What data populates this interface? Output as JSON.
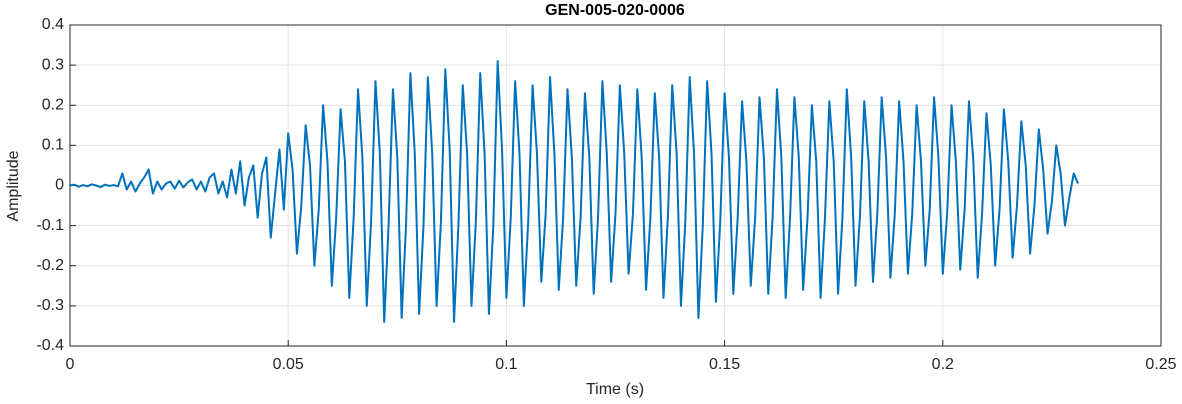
{
  "chart_data": {
    "type": "line",
    "title": "GEN-005-020-0006",
    "xlabel": "Time (s)",
    "ylabel": "Amplitude",
    "color": "#0072bd",
    "grid": true,
    "xlim": [
      0,
      0.25
    ],
    "xticks": [
      0,
      0.05,
      0.1,
      0.15,
      0.2,
      0.25
    ],
    "ylim": [
      -0.4,
      0.4
    ],
    "yticks": [
      -0.4,
      -0.3,
      -0.2,
      -0.1,
      0,
      0.1,
      0.2,
      0.3,
      0.4
    ],
    "x": [
      0,
      0.001,
      0.002,
      0.003,
      0.004,
      0.005,
      0.006,
      0.007,
      0.008,
      0.009,
      0.01,
      0.011,
      0.012,
      0.013,
      0.014,
      0.015,
      0.016,
      0.017,
      0.018,
      0.019,
      0.02,
      0.021,
      0.022,
      0.023,
      0.024,
      0.025,
      0.026,
      0.027,
      0.028,
      0.029,
      0.03,
      0.031,
      0.032,
      0.033,
      0.034,
      0.035,
      0.036,
      0.037,
      0.038,
      0.039,
      0.04,
      0.041,
      0.042,
      0.043,
      0.044,
      0.045,
      0.046,
      0.047,
      0.048,
      0.049,
      0.05,
      0.051,
      0.052,
      0.053,
      0.054,
      0.055,
      0.056,
      0.057,
      0.058,
      0.059,
      0.06,
      0.061,
      0.062,
      0.063,
      0.064,
      0.065,
      0.066,
      0.067,
      0.068,
      0.069,
      0.07,
      0.071,
      0.072,
      0.073,
      0.074,
      0.075,
      0.076,
      0.077,
      0.078,
      0.079,
      0.08,
      0.081,
      0.082,
      0.083,
      0.084,
      0.085,
      0.086,
      0.087,
      0.088,
      0.089,
      0.09,
      0.091,
      0.092,
      0.093,
      0.094,
      0.095,
      0.096,
      0.097,
      0.098,
      0.099,
      0.1,
      0.101,
      0.102,
      0.103,
      0.104,
      0.105,
      0.106,
      0.107,
      0.108,
      0.109,
      0.11,
      0.111,
      0.112,
      0.113,
      0.114,
      0.115,
      0.116,
      0.117,
      0.118,
      0.119,
      0.12,
      0.121,
      0.122,
      0.123,
      0.124,
      0.125,
      0.126,
      0.127,
      0.128,
      0.129,
      0.13,
      0.131,
      0.132,
      0.133,
      0.134,
      0.135,
      0.136,
      0.137,
      0.138,
      0.139,
      0.14,
      0.141,
      0.142,
      0.143,
      0.144,
      0.145,
      0.146,
      0.147,
      0.148,
      0.149,
      0.15,
      0.151,
      0.152,
      0.153,
      0.154,
      0.155,
      0.156,
      0.157,
      0.158,
      0.159,
      0.16,
      0.161,
      0.162,
      0.163,
      0.164,
      0.165,
      0.166,
      0.167,
      0.168,
      0.169,
      0.17,
      0.171,
      0.172,
      0.173,
      0.174,
      0.175,
      0.176,
      0.177,
      0.178,
      0.179,
      0.18,
      0.181,
      0.182,
      0.183,
      0.184,
      0.185,
      0.186,
      0.187,
      0.188,
      0.189,
      0.19,
      0.191,
      0.192,
      0.193,
      0.194,
      0.195,
      0.196,
      0.197,
      0.198,
      0.199,
      0.2,
      0.201,
      0.202,
      0.203,
      0.204,
      0.205,
      0.206,
      0.207,
      0.208,
      0.209,
      0.21,
      0.211,
      0.212,
      0.213,
      0.214,
      0.215,
      0.216,
      0.217,
      0.218,
      0.219,
      0.22,
      0.221,
      0.222,
      0.223,
      0.224,
      0.225,
      0.226,
      0.227,
      0.228,
      0.229,
      0.23,
      0.231
    ],
    "values": [
      0,
      0.002,
      -0.003,
      0.001,
      -0.002,
      0.003,
      0,
      -0.004,
      0.002,
      -0.001,
      0.001,
      -0.002,
      0.03,
      -0.01,
      0.01,
      -0.015,
      0.005,
      0.02,
      0.04,
      -0.02,
      0.01,
      -0.01,
      0.005,
      0.01,
      -0.008,
      0.012,
      -0.005,
      0.008,
      0.015,
      -0.01,
      0.01,
      -0.015,
      0.02,
      0.03,
      -0.02,
      0.01,
      -0.03,
      0.04,
      -0.02,
      0.06,
      -0.05,
      0.02,
      0.05,
      -0.08,
      0.03,
      0.07,
      -0.13,
      -0.02,
      0.09,
      -0.06,
      0.13,
      0.04,
      -0.17,
      -0.05,
      0.15,
      0.05,
      -0.2,
      -0.06,
      0.2,
      0.06,
      -0.25,
      -0.08,
      0.19,
      0.06,
      -0.28,
      -0.08,
      0.24,
      0.07,
      -0.3,
      -0.09,
      0.26,
      0.08,
      -0.34,
      -0.1,
      0.24,
      0.07,
      -0.33,
      -0.1,
      0.28,
      0.08,
      -0.32,
      -0.1,
      0.27,
      0.08,
      -0.3,
      -0.09,
      0.29,
      0.09,
      -0.34,
      -0.1,
      0.25,
      0.08,
      -0.3,
      -0.09,
      0.28,
      0.08,
      -0.32,
      -0.1,
      0.31,
      0.09,
      -0.28,
      -0.08,
      0.26,
      0.08,
      -0.3,
      -0.09,
      0.25,
      0.08,
      -0.24,
      -0.07,
      0.27,
      0.08,
      -0.26,
      -0.08,
      0.24,
      0.07,
      -0.25,
      -0.08,
      0.23,
      0.07,
      -0.27,
      -0.08,
      0.26,
      0.08,
      -0.24,
      -0.07,
      0.25,
      0.08,
      -0.22,
      -0.07,
      0.24,
      0.07,
      -0.26,
      -0.08,
      0.23,
      0.07,
      -0.28,
      -0.08,
      0.25,
      0.08,
      -0.3,
      -0.09,
      0.27,
      0.08,
      -0.33,
      -0.1,
      0.26,
      0.08,
      -0.29,
      -0.09,
      0.23,
      0.07,
      -0.27,
      -0.08,
      0.21,
      0.06,
      -0.25,
      -0.08,
      0.22,
      0.07,
      -0.27,
      -0.08,
      0.24,
      0.07,
      -0.28,
      -0.08,
      0.22,
      0.07,
      -0.26,
      -0.08,
      0.2,
      0.06,
      -0.28,
      -0.08,
      0.21,
      0.06,
      -0.27,
      -0.08,
      0.24,
      0.07,
      -0.25,
      -0.08,
      0.21,
      0.06,
      -0.24,
      -0.07,
      0.22,
      0.07,
      -0.23,
      -0.07,
      0.21,
      0.06,
      -0.22,
      -0.07,
      0.2,
      0.06,
      -0.2,
      -0.06,
      0.22,
      0.07,
      -0.22,
      -0.07,
      0.2,
      0.06,
      -0.21,
      -0.06,
      0.21,
      0.06,
      -0.23,
      -0.07,
      0.18,
      0.05,
      -0.2,
      -0.06,
      0.19,
      0.06,
      -0.18,
      -0.05,
      0.16,
      0.05,
      -0.17,
      -0.05,
      0.14,
      0.04,
      -0.12,
      -0.04,
      0.1,
      0.03,
      -0.1,
      -0.03,
      0.03,
      0.005
    ]
  }
}
